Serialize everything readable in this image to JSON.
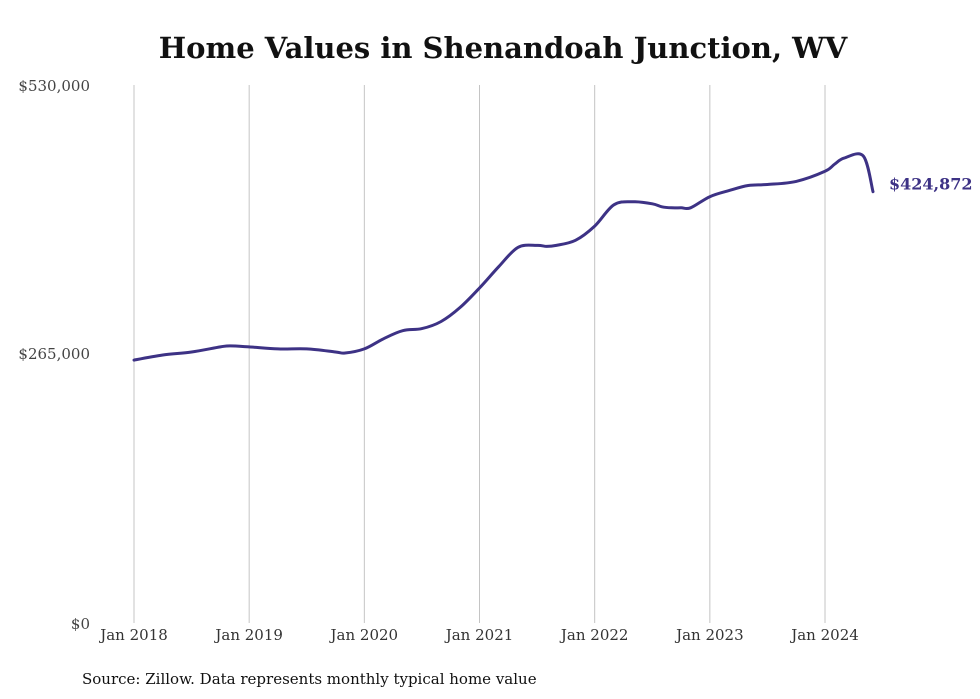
{
  "chart_data": {
    "type": "line",
    "title": "Home Values in Shenandoah Junction, WV",
    "source": "Source: Zillow. Data represents monthly typical home value",
    "x_tick_labels": [
      "Jan 2018",
      "Jan 2019",
      "Jan 2020",
      "Jan 2021",
      "Jan 2022",
      "Jan 2023",
      "Jan 2024"
    ],
    "y_tick_labels": [
      "$530,000",
      "$265,000",
      "$0"
    ],
    "ylim": [
      0,
      530000
    ],
    "xlim_months_since_jan_2018": [
      0,
      77
    ],
    "grid": "vertical",
    "line_color": "#3d3285",
    "end_label": "$424,872",
    "series": [
      {
        "name": "Typical home value",
        "x_months_since_jan_2018": [
          0,
          3,
          6,
          9,
          10,
          12,
          15,
          18,
          21,
          22,
          24,
          26,
          28,
          30,
          32,
          34,
          36,
          38,
          40,
          42,
          43,
          44,
          46,
          48,
          50,
          52,
          54,
          55,
          56,
          57,
          58,
          60,
          62,
          64,
          66,
          69,
          72,
          73,
          74,
          76,
          77
        ],
        "values": [
          259000,
          264000,
          267000,
          272000,
          273000,
          272000,
          270000,
          270000,
          267000,
          266000,
          270000,
          280000,
          288000,
          290000,
          297000,
          311000,
          330000,
          351000,
          370000,
          372000,
          371000,
          372000,
          377000,
          391000,
          412000,
          415000,
          413000,
          410000,
          409000,
          409000,
          409000,
          420000,
          426000,
          431000,
          432000,
          435000,
          445000,
          452000,
          458000,
          460000,
          424872
        ]
      }
    ]
  }
}
